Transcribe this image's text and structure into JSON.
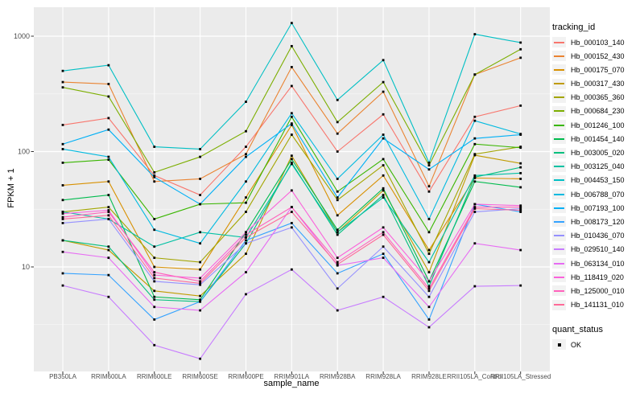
{
  "figure": {
    "background": "#FFFFFF",
    "panel_background": "#EBEBEB",
    "grid_major_color": "#FFFFFF",
    "grid_minor_color": "#FFFFFF",
    "tick_color": "#333333",
    "axis_text_color": "#4D4D4D",
    "point_color": "#000000"
  },
  "axes": {
    "x_title": "sample_name",
    "y_title": "FPKM + 1",
    "y_tick_labels": [
      "10",
      "100",
      "1000"
    ],
    "y_tick_values": [
      10,
      100,
      1000
    ],
    "y_minor_values": [
      3.1623,
      31.623,
      316.23
    ]
  },
  "legend": {
    "tracking_title": "tracking_id",
    "quant_title": "quant_status",
    "quant_items": [
      {
        "label": "OK",
        "marker": "black-square"
      }
    ]
  },
  "chart_data": {
    "type": "line",
    "y_scale": "log10",
    "ylim": [
      1.2,
      1800
    ],
    "grid": true,
    "legend_position": "right",
    "x_categories": [
      "PB350LA",
      "RRIM600LA",
      "RRIM600LE",
      "RRIM600SE",
      "RRIM600PE",
      "RRIM901LA",
      "RRIM928BA",
      "RRIM928LA",
      "RRIM928LE",
      "RRII105LA_Control",
      "RRII105LA_Stressed"
    ],
    "point_marker": {
      "shape": "square",
      "color": "#000000",
      "size": 2.8
    },
    "series": [
      {
        "name": "Hb_000103_140",
        "color": "#F8766D",
        "values": [
          170,
          195,
          62,
          42,
          110,
          370,
          100,
          210,
          45,
          200,
          250
        ]
      },
      {
        "name": "Hb_000152_430",
        "color": "#EA8331",
        "values": [
          400,
          385,
          55,
          58,
          95,
          540,
          143,
          330,
          50,
          465,
          650
        ]
      },
      {
        "name": "Hb_000175_070",
        "color": "#D89000",
        "values": [
          51,
          55,
          10,
          9.5,
          40,
          170,
          28,
          62,
          14,
          59,
          58
        ]
      },
      {
        "name": "Hb_000317_430",
        "color": "#C09B00",
        "values": [
          17,
          14,
          6.2,
          5.6,
          13,
          92,
          20,
          46,
          9,
          93,
          79
        ]
      },
      {
        "name": "Hb_000365_360",
        "color": "#A3A500",
        "values": [
          30,
          33,
          12,
          11,
          30,
          140,
          38,
          76,
          13,
          95,
          110
        ]
      },
      {
        "name": "Hb_000684_230",
        "color": "#7CAE00",
        "values": [
          360,
          300,
          66,
          90,
          150,
          820,
          180,
          400,
          76,
          465,
          770
        ]
      },
      {
        "name": "Hb_001246_100",
        "color": "#39B600",
        "values": [
          80,
          85,
          26,
          35,
          36,
          200,
          45,
          86,
          20,
          116,
          108
        ]
      },
      {
        "name": "Hb_001454_140",
        "color": "#00BB4E",
        "values": [
          38,
          42,
          5.5,
          5.2,
          20,
          86,
          21,
          48,
          7.5,
          55,
          49
        ]
      },
      {
        "name": "Hb_003005_020",
        "color": "#00BF7D",
        "values": [
          17,
          15,
          5.2,
          5.0,
          16,
          80,
          19,
          42,
          6.8,
          60,
          73
        ]
      },
      {
        "name": "Hb_003125_040",
        "color": "#00C1A3",
        "values": [
          30,
          26,
          15,
          20,
          18,
          78,
          20,
          40,
          11,
          62,
          65
        ]
      },
      {
        "name": "Hb_004453_150",
        "color": "#00BFC4",
        "values": [
          500,
          560,
          110,
          105,
          270,
          1300,
          280,
          620,
          80,
          1040,
          880
        ]
      },
      {
        "name": "Hb_006788_070",
        "color": "#00BAE0",
        "values": [
          105,
          90,
          21,
          16,
          55,
          215,
          58,
          140,
          26,
          185,
          142
        ]
      },
      {
        "name": "Hb_007193_100",
        "color": "#00B0F6",
        "values": [
          116,
          155,
          60,
          35,
          90,
          175,
          40,
          130,
          70,
          130,
          140
        ]
      },
      {
        "name": "Hb_008173_120",
        "color": "#35A2FF",
        "values": [
          8.8,
          8.5,
          3.5,
          5.0,
          17,
          24,
          8.8,
          13,
          3.5,
          35,
          30
        ]
      },
      {
        "name": "Hb_010436_070",
        "color": "#9590FF",
        "values": [
          24,
          26,
          7.5,
          7.0,
          16,
          22,
          6.5,
          15,
          5.5,
          30,
          32
        ]
      },
      {
        "name": "Hb_029510_140",
        "color": "#C77CFF",
        "values": [
          6.9,
          5.5,
          2.1,
          1.6,
          5.8,
          9.5,
          4.2,
          5.5,
          3.0,
          6.8,
          6.9
        ]
      },
      {
        "name": "Hb_063134_010",
        "color": "#E76BF3",
        "values": [
          13.5,
          12,
          4.5,
          4.2,
          9,
          33,
          10.3,
          12,
          4.5,
          16,
          14
        ]
      },
      {
        "name": "Hb_118419_020",
        "color": "#FA62DB",
        "values": [
          29,
          31,
          8.5,
          8.0,
          20,
          46,
          12,
          22,
          7.5,
          35,
          34
        ]
      },
      {
        "name": "Hb_125000_010",
        "color": "#FF62BC",
        "values": [
          27,
          30,
          9.0,
          7.5,
          19,
          33,
          11,
          20,
          6.5,
          33,
          33
        ]
      },
      {
        "name": "Hb_141131_010",
        "color": "#FF6A98",
        "values": [
          26,
          28,
          8.0,
          7.2,
          18,
          30,
          10.5,
          19,
          6.2,
          32,
          31
        ]
      }
    ]
  }
}
